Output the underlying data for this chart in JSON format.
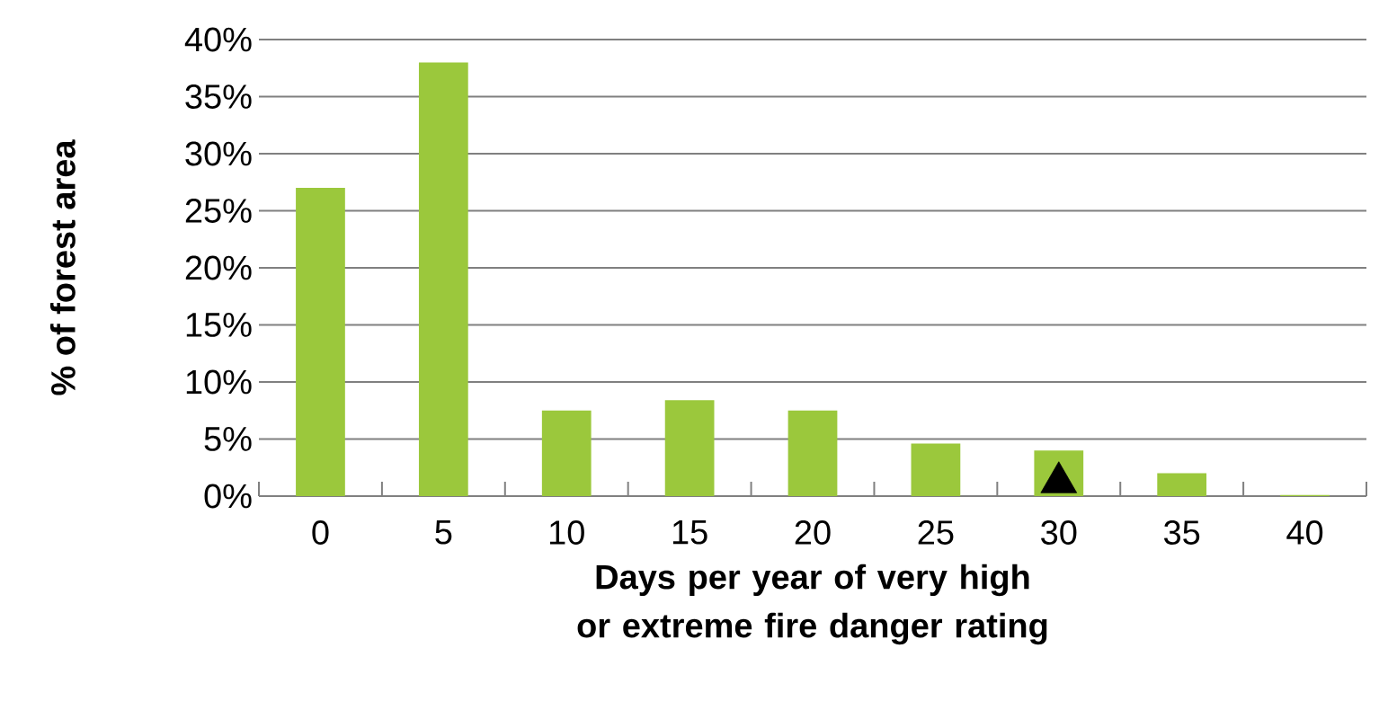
{
  "chart_data": {
    "type": "bar",
    "xlabel": "Days per year of very high or extreme fire danger rating",
    "ylabel": "% of forest area",
    "categories": [
      "0",
      "5",
      "10",
      "15",
      "20",
      "25",
      "30",
      "35",
      "40"
    ],
    "series": [
      {
        "color": "#9bc83c",
        "values": [
          27,
          38,
          7.5,
          8.4,
          7.5,
          4.6,
          4.0,
          2.0,
          0.1
        ]
      },
      {
        "type": "scatter",
        "color": "#000000",
        "marker": "triangle",
        "x": [
          "30"
        ],
        "values": [
          1.2
        ]
      }
    ],
    "ylim": [
      0,
      40
    ],
    "yticks": [
      {
        "value": 0,
        "label": "0%"
      },
      {
        "value": 5,
        "label": "5%"
      },
      {
        "value": 10,
        "label": "10%"
      },
      {
        "value": 15,
        "label": "15%"
      },
      {
        "value": 20,
        "label": "20%"
      },
      {
        "value": 25,
        "label": "25%"
      },
      {
        "value": 30,
        "label": "30%"
      },
      {
        "value": 35,
        "label": "35%"
      },
      {
        "value": 40,
        "label": "40%"
      }
    ],
    "grid": "y"
  }
}
